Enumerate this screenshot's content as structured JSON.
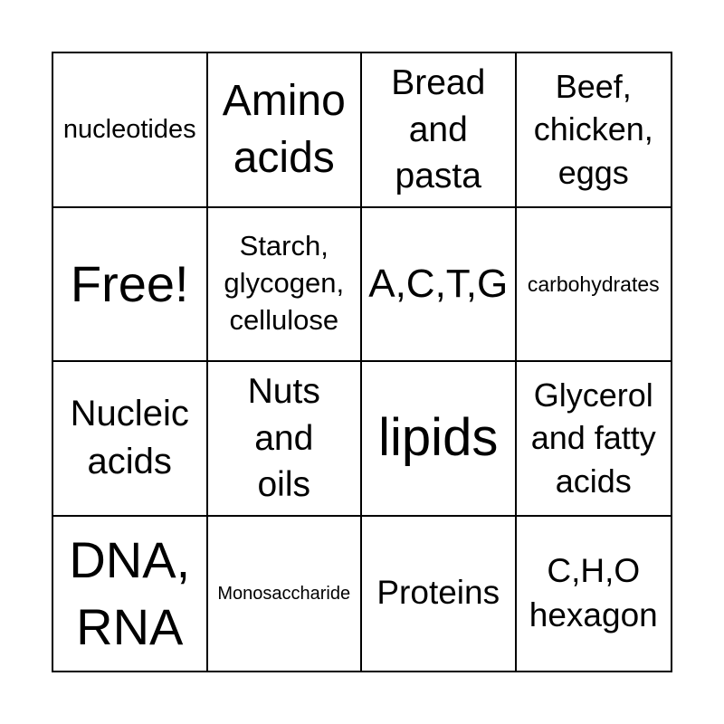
{
  "colors": {
    "background": "#ffffff",
    "grid_line": "#000000",
    "text": "#000000"
  },
  "card": {
    "rows": 4,
    "cols": 4,
    "free_label": "Free!",
    "cells": [
      {
        "row": 1,
        "col": 1,
        "text": "nucleotides",
        "is_free": false
      },
      {
        "row": 1,
        "col": 2,
        "text": "Amino\nacids",
        "is_free": false
      },
      {
        "row": 1,
        "col": 3,
        "text": "Bread\nand\npasta",
        "is_free": false
      },
      {
        "row": 1,
        "col": 4,
        "text": "Beef,\nchicken,\neggs",
        "is_free": false
      },
      {
        "row": 2,
        "col": 1,
        "text": "Free!",
        "is_free": true
      },
      {
        "row": 2,
        "col": 2,
        "text": "Starch,\nglycogen,\ncellulose",
        "is_free": false
      },
      {
        "row": 2,
        "col": 3,
        "text": "A,C,T,G",
        "is_free": false
      },
      {
        "row": 2,
        "col": 4,
        "text": "carbohydrates",
        "is_free": false
      },
      {
        "row": 3,
        "col": 1,
        "text": "Nucleic\nacids",
        "is_free": false
      },
      {
        "row": 3,
        "col": 2,
        "text": "Nuts\nand\noils",
        "is_free": false
      },
      {
        "row": 3,
        "col": 3,
        "text": "lipids",
        "is_free": false
      },
      {
        "row": 3,
        "col": 4,
        "text": "Glycerol\nand fatty\nacids",
        "is_free": false
      },
      {
        "row": 4,
        "col": 1,
        "text": "DNA,\nRNA",
        "is_free": false
      },
      {
        "row": 4,
        "col": 2,
        "text": "Monosaccharide",
        "is_free": false
      },
      {
        "row": 4,
        "col": 3,
        "text": "Proteins",
        "is_free": false
      },
      {
        "row": 4,
        "col": 4,
        "text": "C,H,O\nhexagon",
        "is_free": false
      }
    ]
  }
}
